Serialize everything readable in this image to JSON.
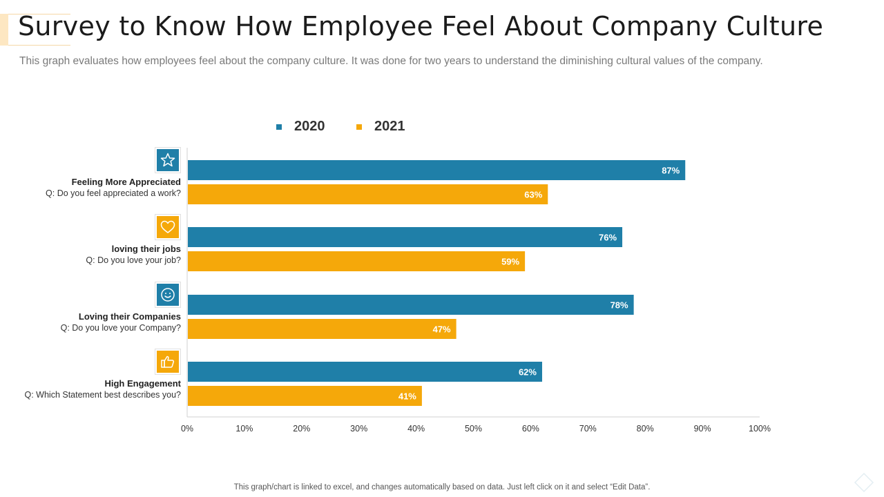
{
  "title": "Survey to Know How Employee Feel About Company Culture",
  "subtitle": "This graph evaluates how employees feel about the company culture. It was done for two years to understand the diminishing cultural values of the company.",
  "footnote": "This graph/chart is linked to excel, and changes automatically based on data. Just left click on it and select “Edit Data”.",
  "colors": {
    "series_2020": "#1f7fa8",
    "series_2021": "#f5a80a",
    "axis": "#d0d0d0"
  },
  "categories": [
    {
      "name": "Feeling More Appreciated",
      "question": "Q: Do you feel appreciated  a work?",
      "icon": "star-icon",
      "icon_color": "#1f7fa8"
    },
    {
      "name": "loving their jobs",
      "question": "Q: Do you love  your job?",
      "icon": "heart-icon",
      "icon_color": "#f5a80a"
    },
    {
      "name": "Loving their Companies",
      "question": "Q: Do you love  your Company?",
      "icon": "smiley-icon",
      "icon_color": "#1f7fa8"
    },
    {
      "name": "High Engagement",
      "question": "Q: Which Statement best describes you?",
      "icon": "thumbs-up-icon",
      "icon_color": "#f5a80a"
    }
  ],
  "chart_data": {
    "type": "bar",
    "orientation": "horizontal",
    "categories": [
      "Feeling More Appreciated",
      "loving their jobs",
      "Loving their Companies",
      "High Engagement"
    ],
    "series": [
      {
        "name": "2020",
        "values": [
          87,
          76,
          78,
          62
        ]
      },
      {
        "name": "2021",
        "values": [
          63,
          59,
          47,
          41
        ]
      }
    ],
    "value_suffix": "%",
    "xlim": [
      0,
      100
    ],
    "xticks": [
      "0%",
      "10%",
      "20%",
      "30%",
      "40%",
      "50%",
      "60%",
      "70%",
      "80%",
      "90%",
      "100%"
    ],
    "legend_position": "top-center",
    "grid": false
  }
}
